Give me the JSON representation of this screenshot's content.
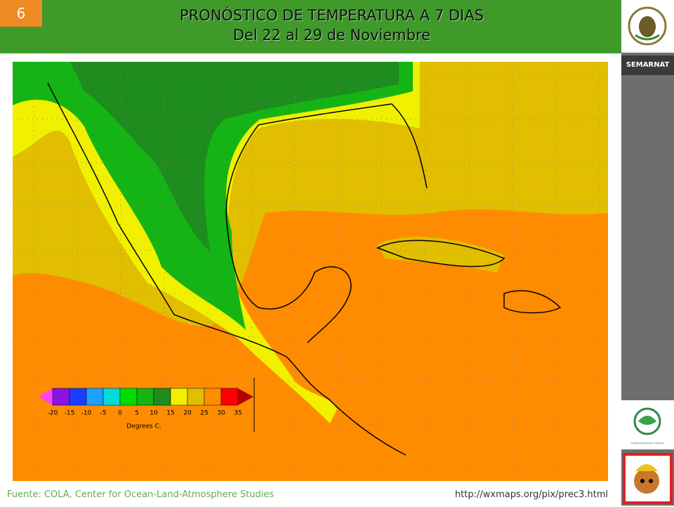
{
  "slide": {
    "number": "6",
    "title": "PRONÓSTICO DE TEMPERATURA A 7 DIAS",
    "subtitle": "Del 22 al 29 de Noviembre"
  },
  "sidebar": {
    "brand": "SEMARNAT",
    "logo_caption": "COMISIÓN NACIONAL FORESTAL"
  },
  "map": {
    "legend": {
      "ticks": [
        -20,
        -15,
        -10,
        -5,
        0,
        5,
        10,
        15,
        20,
        25,
        30,
        35
      ],
      "colors": [
        "#ff40ff",
        "#8c14e0",
        "#1e3cff",
        "#1ea0ff",
        "#00dcdc",
        "#00dc00",
        "#14b414",
        "#1e8c1e",
        "#f0f000",
        "#e1be00",
        "#ff8c00",
        "#ff0000",
        "#b40000"
      ],
      "unit": "Degrees C."
    }
  },
  "footer": {
    "source": "Fuente: COLA, Center  for Ocean-Land-Atmosphere Studies",
    "url": "http://wxmaps.org/pix/prec3.html"
  }
}
